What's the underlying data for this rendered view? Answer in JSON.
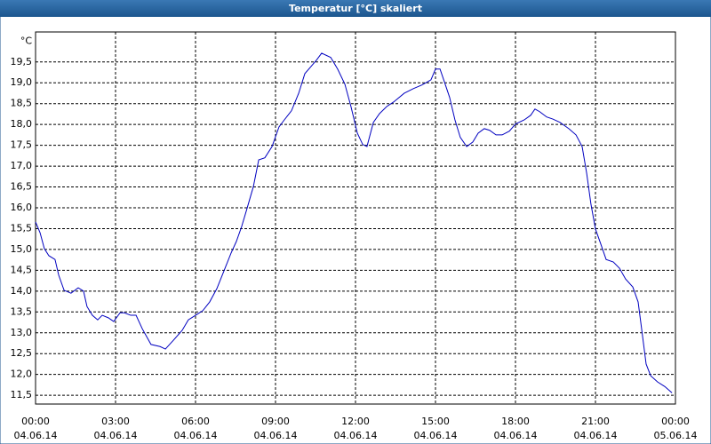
{
  "chart_data": {
    "type": "line",
    "title": "Temperatur [°C] skaliert",
    "y_unit": "°C",
    "x": [
      0,
      0.17,
      0.33,
      0.5,
      0.73,
      0.87,
      1.07,
      1.33,
      1.6,
      1.8,
      1.93,
      2.13,
      2.33,
      2.5,
      2.73,
      2.93,
      3.17,
      3.33,
      3.57,
      3.77,
      4,
      4.33,
      4.67,
      4.87,
      5.17,
      5.5,
      5.73,
      6,
      6.27,
      6.53,
      6.8,
      7.07,
      7.33,
      7.53,
      7.73,
      7.93,
      8.17,
      8.37,
      8.6,
      8.87,
      9.13,
      9.33,
      9.6,
      9.87,
      10.1,
      10.33,
      10.53,
      10.73,
      11.07,
      11.33,
      11.6,
      11.83,
      12.07,
      12.27,
      12.43,
      12.67,
      12.9,
      13.17,
      13.43,
      13.83,
      14.17,
      14.5,
      14.83,
      15,
      15.17,
      15.33,
      15.53,
      15.73,
      15.93,
      16.17,
      16.4,
      16.6,
      16.83,
      17.03,
      17.27,
      17.5,
      17.77,
      18,
      18.33,
      18.57,
      18.73,
      18.9,
      19.17,
      19.4,
      19.67,
      20,
      20.27,
      20.5,
      20.67,
      20.83,
      21,
      21.2,
      21.4,
      21.67,
      21.9,
      22.13,
      22.4,
      22.6,
      22.73,
      22.9,
      23.07,
      23.33,
      23.6,
      23.87
    ],
    "series": [
      {
        "name": "Temperatur",
        "color": "#0000c0",
        "values": [
          15.66,
          15.4,
          15.02,
          14.85,
          14.76,
          14.38,
          14.02,
          13.95,
          14.08,
          14.0,
          13.63,
          13.42,
          13.31,
          13.42,
          13.36,
          13.27,
          13.48,
          13.48,
          13.42,
          13.42,
          13.1,
          12.72,
          12.67,
          12.61,
          12.82,
          13.06,
          13.31,
          13.42,
          13.53,
          13.74,
          14.06,
          14.49,
          14.91,
          15.19,
          15.55,
          15.98,
          16.51,
          17.15,
          17.2,
          17.47,
          17.94,
          18.11,
          18.33,
          18.75,
          19.22,
          19.39,
          19.54,
          19.71,
          19.61,
          19.33,
          18.97,
          18.43,
          17.79,
          17.52,
          17.47,
          18.05,
          18.26,
          18.43,
          18.54,
          18.75,
          18.86,
          18.95,
          19.07,
          19.33,
          19.33,
          19.03,
          18.65,
          18.11,
          17.69,
          17.47,
          17.58,
          17.79,
          17.9,
          17.86,
          17.75,
          17.75,
          17.84,
          18.01,
          18.11,
          18.22,
          18.37,
          18.31,
          18.18,
          18.13,
          18.05,
          17.9,
          17.75,
          17.47,
          16.83,
          16.09,
          15.49,
          15.13,
          14.76,
          14.7,
          14.55,
          14.29,
          14.1,
          13.74,
          13.1,
          12.25,
          11.97,
          11.82,
          11.71,
          11.56
        ]
      }
    ],
    "xlim": [
      0,
      24
    ],
    "xticks": [
      {
        "value": 0,
        "label": "00:00",
        "date": "04.06.14"
      },
      {
        "value": 3,
        "label": "03:00",
        "date": "04.06.14"
      },
      {
        "value": 6,
        "label": "06:00",
        "date": "04.06.14"
      },
      {
        "value": 9,
        "label": "09:00",
        "date": "04.06.14"
      },
      {
        "value": 12,
        "label": "12:00",
        "date": "04.06.14"
      },
      {
        "value": 15,
        "label": "15:00",
        "date": "04.06.14"
      },
      {
        "value": 18,
        "label": "18:00",
        "date": "04.06.14"
      },
      {
        "value": 21,
        "label": "21:00",
        "date": "04.06.14"
      },
      {
        "value": 24,
        "label": "00:00",
        "date": "05.06.14"
      }
    ],
    "ylim": [
      11.29,
      20.22
    ],
    "yticks": [
      {
        "value": 11.5,
        "label": "11,5"
      },
      {
        "value": 12,
        "label": "12,0"
      },
      {
        "value": 12.5,
        "label": "12,5"
      },
      {
        "value": 13,
        "label": "13,0"
      },
      {
        "value": 13.5,
        "label": "13,5"
      },
      {
        "value": 14,
        "label": "14,0"
      },
      {
        "value": 14.5,
        "label": "14,5"
      },
      {
        "value": 15,
        "label": "15,0"
      },
      {
        "value": 15.5,
        "label": "15,5"
      },
      {
        "value": 16,
        "label": "16,0"
      },
      {
        "value": 16.5,
        "label": "16,5"
      },
      {
        "value": 17,
        "label": "17,0"
      },
      {
        "value": 17.5,
        "label": "17,5"
      },
      {
        "value": 18,
        "label": "18,0"
      },
      {
        "value": 18.5,
        "label": "18,5"
      },
      {
        "value": 19,
        "label": "19,0"
      },
      {
        "value": 19.5,
        "label": "19,5"
      }
    ],
    "grid": true
  }
}
